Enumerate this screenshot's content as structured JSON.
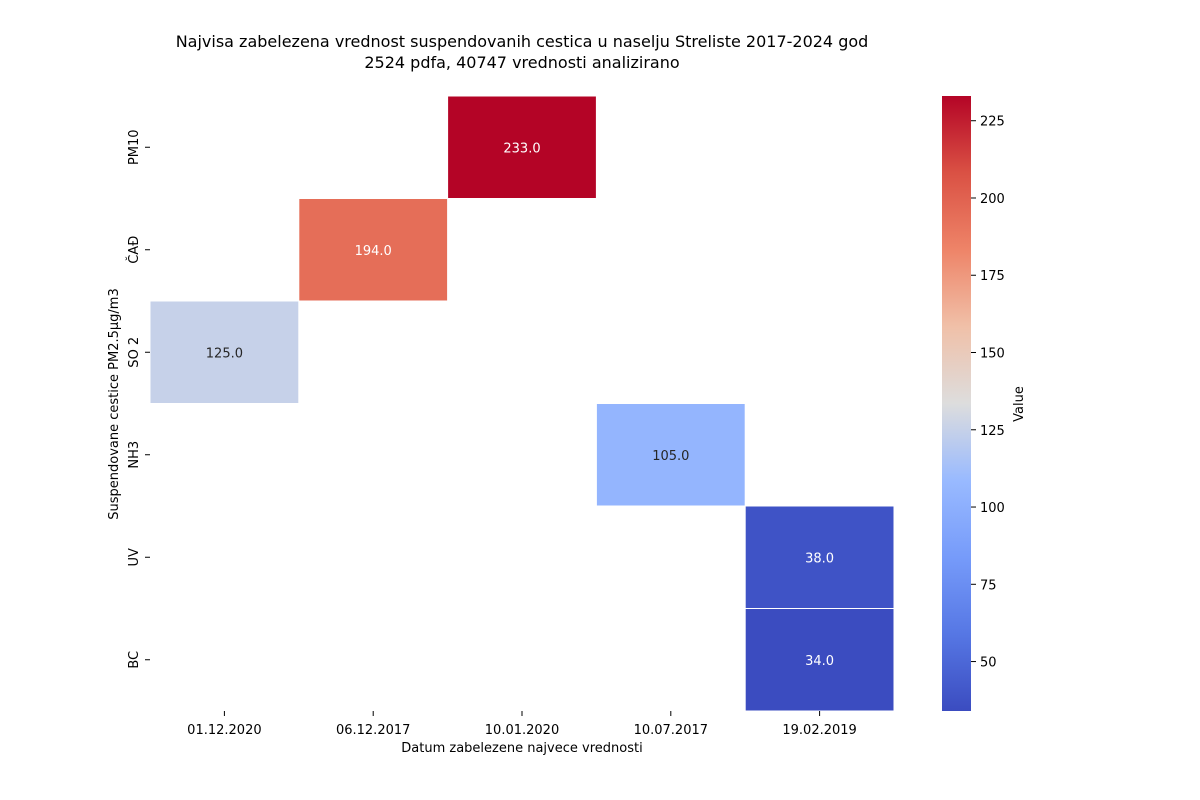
{
  "chart_data": {
    "type": "heatmap",
    "title": "Najvisa zabelezena vrednost suspendovanih cestica u naselju Streliste 2017-2024 god",
    "subtitle": "2524 pdfa, 40747 vrednosti analizirano",
    "xlabel": "Datum zabelezene najvece vrednosti",
    "ylabel": "Suspendovane cestice PM2.5µg/m3",
    "x_categories": [
      "01.12.2020",
      "06.12.2017",
      "10.01.2020",
      "10.07.2017",
      "19.02.2019"
    ],
    "y_categories": [
      "PM10",
      "ČAĐ",
      "SO 2",
      "NH3",
      "UV",
      "BC"
    ],
    "cells": [
      {
        "x": "10.01.2020",
        "y": "PM10",
        "value": 233.0,
        "label": "233.0"
      },
      {
        "x": "06.12.2017",
        "y": "ČAĐ",
        "value": 194.0,
        "label": "194.0"
      },
      {
        "x": "01.12.2020",
        "y": "SO 2",
        "value": 125.0,
        "label": "125.0"
      },
      {
        "x": "10.07.2017",
        "y": "NH3",
        "value": 105.0,
        "label": "105.0"
      },
      {
        "x": "19.02.2019",
        "y": "UV",
        "value": 38.0,
        "label": "38.0"
      },
      {
        "x": "19.02.2019",
        "y": "BC",
        "value": 34.0,
        "label": "34.0"
      }
    ],
    "colorbar": {
      "label": "Value",
      "colormap": "coolwarm",
      "vmin": 34.0,
      "vmax": 233.0,
      "ticks": [
        "50",
        "75",
        "100",
        "125",
        "150",
        "175",
        "200",
        "225"
      ]
    }
  }
}
